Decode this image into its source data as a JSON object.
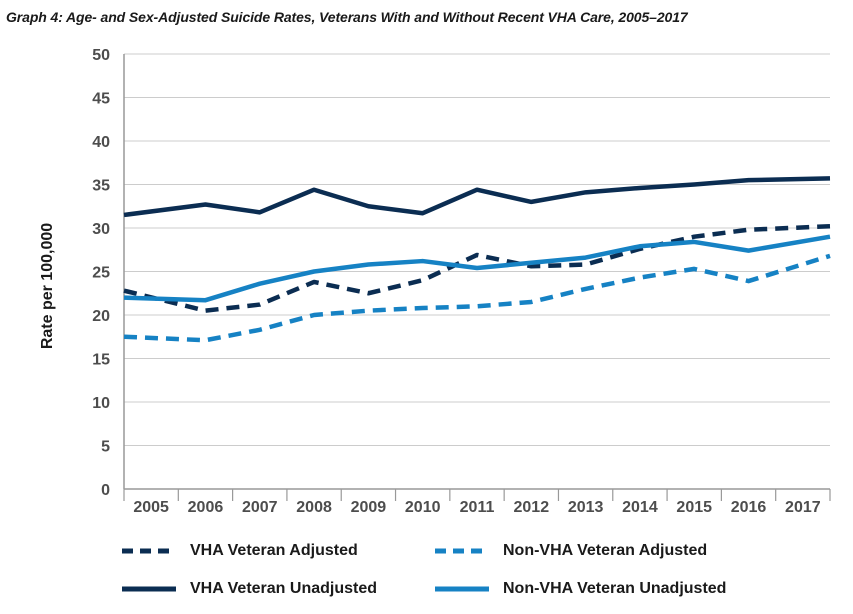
{
  "title": "Graph 4: Age- and Sex-Adjusted Suicide Rates, Veterans With and Without Recent VHA Care, 2005–2017",
  "colors": {
    "dark_navy": "#0b2d52",
    "light_blue": "#1682c4",
    "gridline": "#cccccc"
  },
  "chart_data": {
    "type": "line",
    "title": "Graph 4: Age- and Sex-Adjusted Suicide Rates, Veterans With and Without Recent VHA Care, 2005–2017",
    "xlabel": "",
    "ylabel": "Rate per 100,000",
    "ylim": [
      0,
      50
    ],
    "yticks": [
      "0",
      "5",
      "10",
      "15",
      "20",
      "25",
      "30",
      "35",
      "40",
      "45",
      "50"
    ],
    "categories": [
      "2005",
      "2006",
      "2007",
      "2008",
      "2009",
      "2010",
      "2011",
      "2012",
      "2013",
      "2014",
      "2015",
      "2016",
      "2017"
    ],
    "grid": true,
    "legend_position": "bottom",
    "series": [
      {
        "name": "VHA Veteran Adjusted",
        "style": "dashed",
        "color": "#0b2d52",
        "values": [
          22.8,
          20.5,
          21.2,
          23.8,
          22.5,
          24.0,
          26.9,
          25.6,
          25.8,
          27.6,
          29.0,
          29.8,
          30.2
        ]
      },
      {
        "name": "Non-VHA Veteran Adjusted",
        "style": "dashed",
        "color": "#1682c4",
        "values": [
          17.5,
          17.1,
          18.3,
          20.0,
          20.5,
          20.8,
          21.0,
          21.5,
          23.0,
          24.3,
          25.3,
          23.9,
          26.8
        ]
      },
      {
        "name": "VHA Veteran Unadjusted",
        "style": "solid",
        "color": "#0b2d52",
        "values": [
          31.5,
          32.7,
          31.8,
          34.4,
          32.5,
          31.7,
          34.4,
          33.0,
          34.1,
          34.6,
          35.0,
          35.5,
          35.7
        ]
      },
      {
        "name": "Non-VHA Veteran Unadjusted",
        "style": "solid",
        "color": "#1682c4",
        "values": [
          22.0,
          21.7,
          23.6,
          25.0,
          25.8,
          26.2,
          25.4,
          26.0,
          26.6,
          27.9,
          28.4,
          27.4,
          29.0
        ]
      }
    ]
  }
}
